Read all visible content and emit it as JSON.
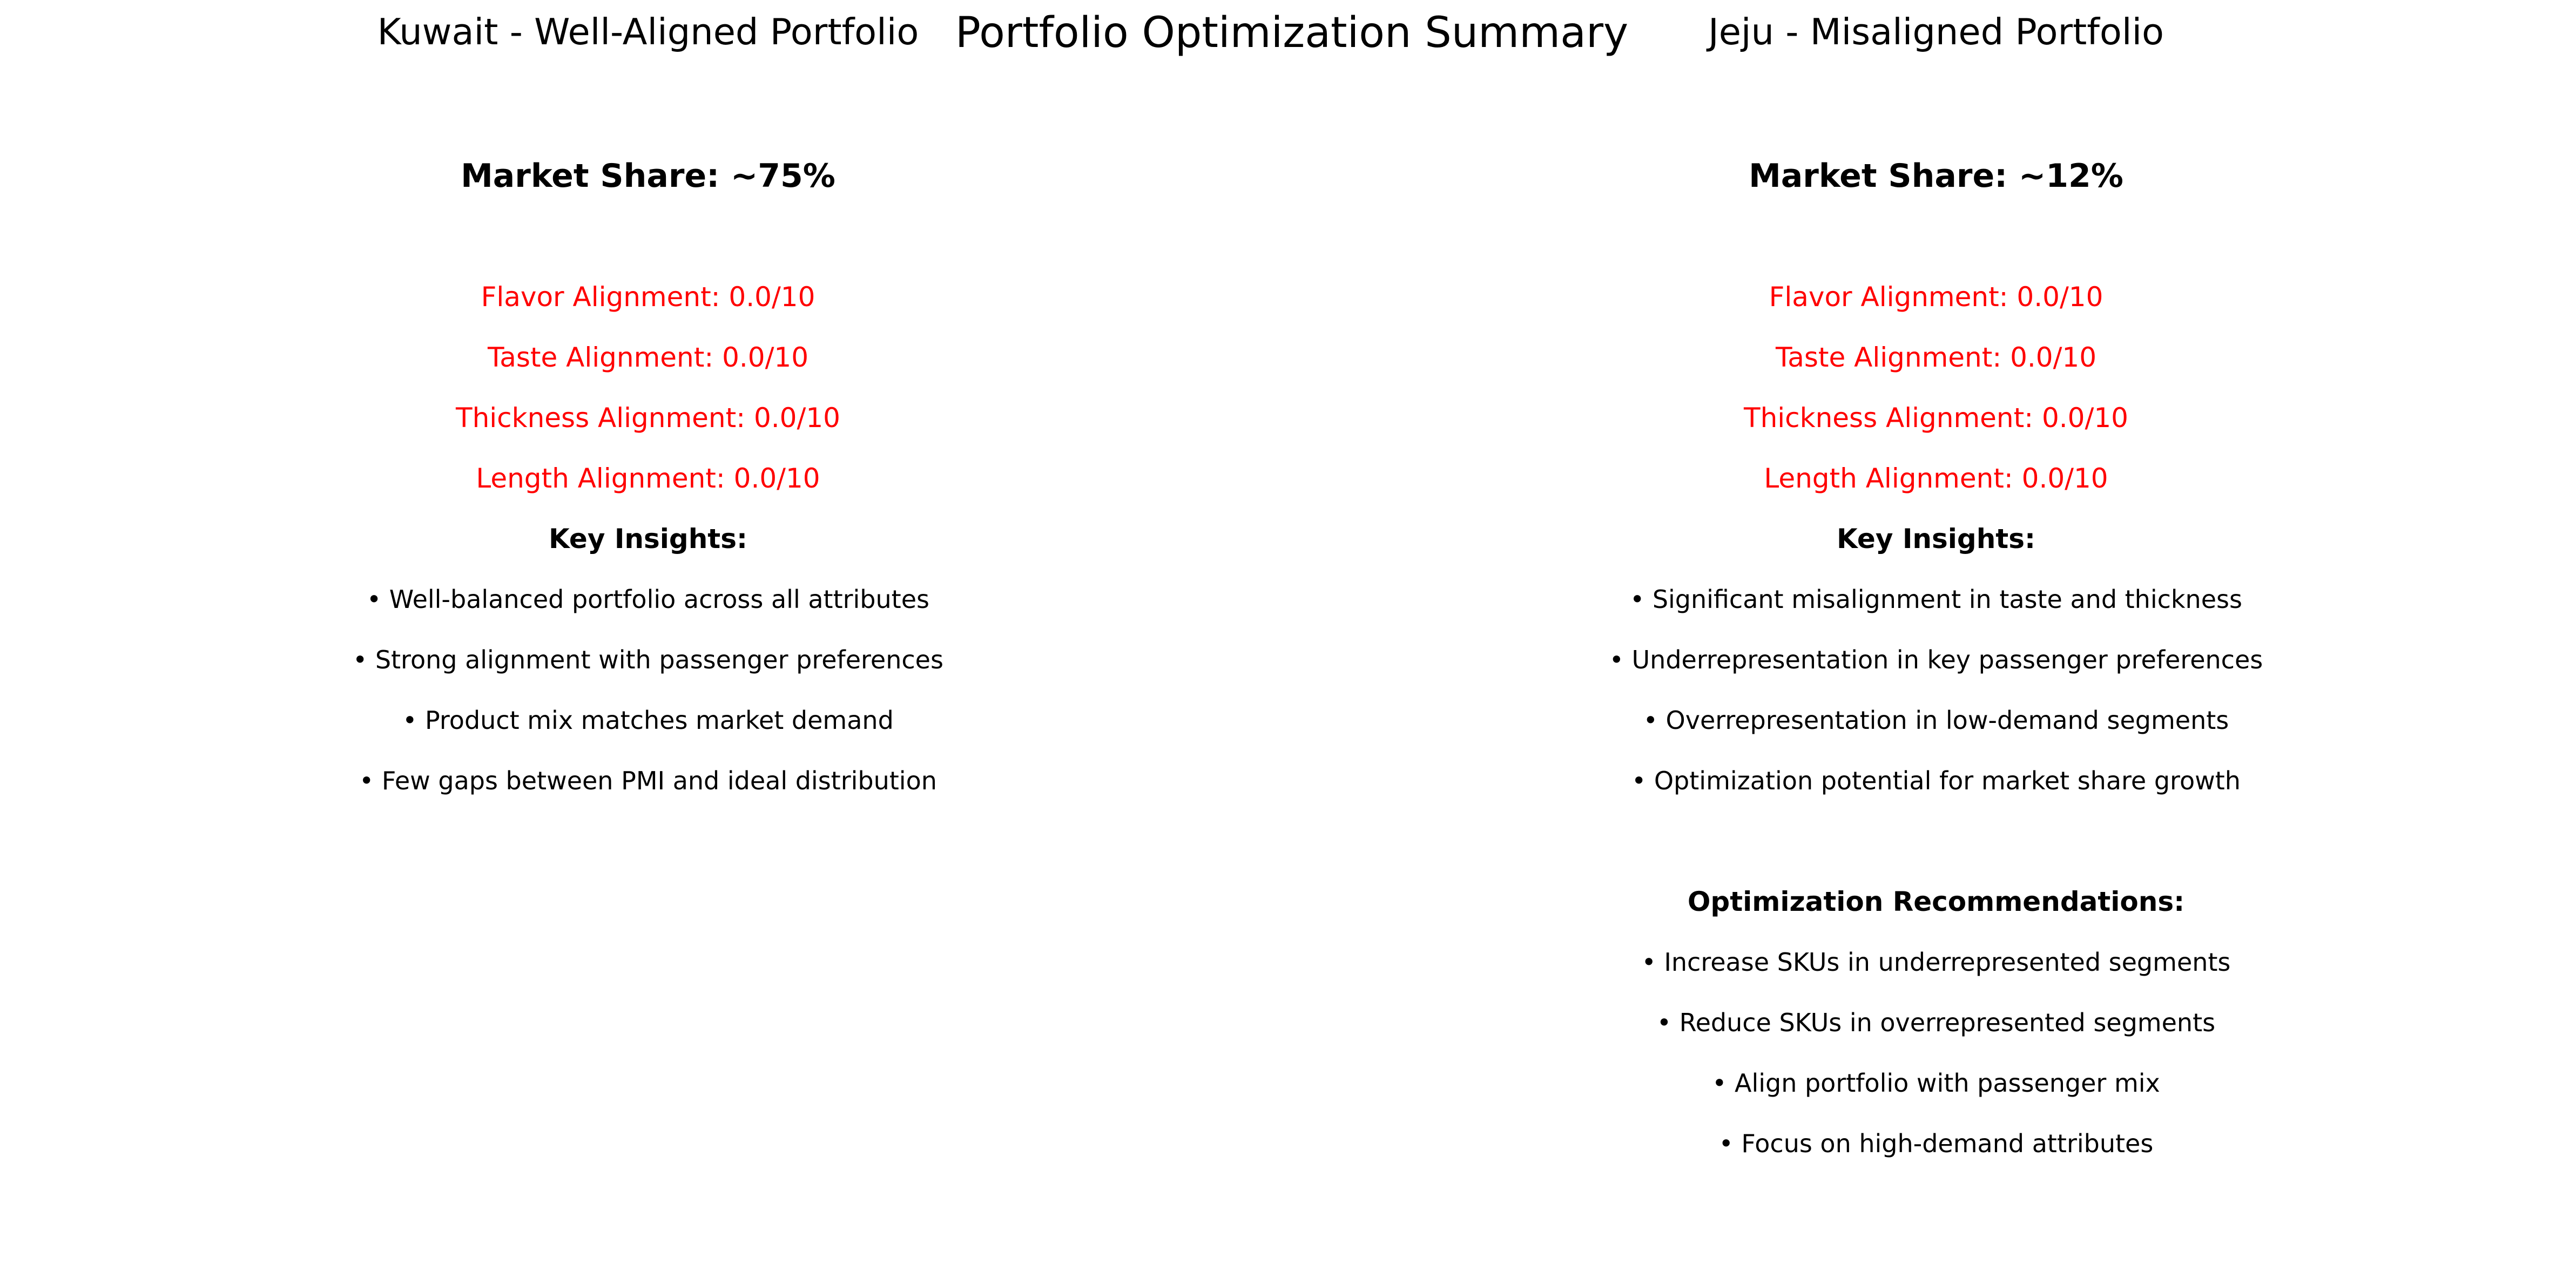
{
  "colors": {
    "background": "#ffffff",
    "text": "#000000",
    "alignment_metric": "#ff0000"
  },
  "suptitle": "Portfolio Optimization Summary",
  "chart_data": {
    "type": "table",
    "title": "Portfolio Optimization Summary",
    "panels": [
      {
        "title": "Kuwait - Well-Aligned Portfolio",
        "market_share": "Market Share: ~75%",
        "market_share_pct": 75,
        "alignment_scores": [
          {
            "label": "Flavor Alignment: 0.0/10",
            "attribute": "Flavor",
            "score": 0.0,
            "max": 10
          },
          {
            "label": "Taste Alignment: 0.0/10",
            "attribute": "Taste",
            "score": 0.0,
            "max": 10
          },
          {
            "label": "Thickness Alignment: 0.0/10",
            "attribute": "Thickness",
            "score": 0.0,
            "max": 10
          },
          {
            "label": "Length Alignment: 0.0/10",
            "attribute": "Length",
            "score": 0.0,
            "max": 10
          }
        ],
        "insights_heading": "Key Insights:",
        "insights": [
          "• Well-balanced portfolio across all attributes",
          "• Strong alignment with passenger preferences",
          "• Product mix matches market demand",
          "• Few gaps between PMI and ideal distribution"
        ]
      },
      {
        "title": "Jeju - Misaligned Portfolio",
        "market_share": "Market Share: ~12%",
        "market_share_pct": 12,
        "alignment_scores": [
          {
            "label": "Flavor Alignment: 0.0/10",
            "attribute": "Flavor",
            "score": 0.0,
            "max": 10
          },
          {
            "label": "Taste Alignment: 0.0/10",
            "attribute": "Taste",
            "score": 0.0,
            "max": 10
          },
          {
            "label": "Thickness Alignment: 0.0/10",
            "attribute": "Thickness",
            "score": 0.0,
            "max": 10
          },
          {
            "label": "Length Alignment: 0.0/10",
            "attribute": "Length",
            "score": 0.0,
            "max": 10
          }
        ],
        "insights_heading": "Key Insights:",
        "insights": [
          "• Significant misalignment in taste and thickness",
          "• Underrepresentation in key passenger preferences",
          "• Overrepresentation in low-demand segments",
          "• Optimization potential for market share growth"
        ],
        "recommendations_heading": "Optimization Recommendations:",
        "recommendations": [
          "• Increase SKUs in underrepresented segments",
          "• Reduce SKUs in overrepresented segments",
          "• Align portfolio with passenger mix",
          "• Focus on high-demand attributes"
        ]
      }
    ]
  }
}
